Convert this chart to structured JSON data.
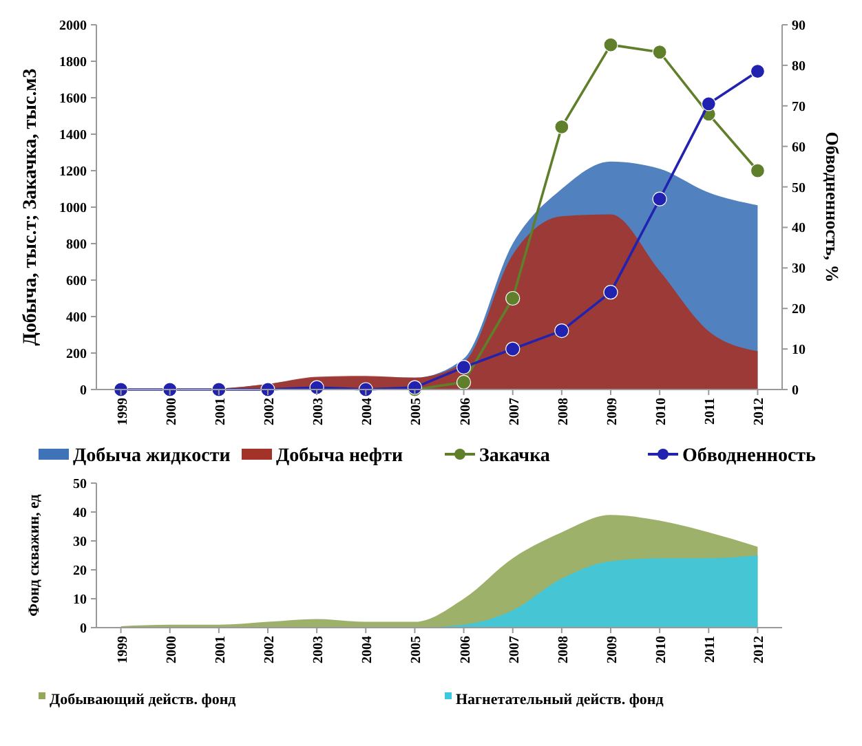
{
  "chart_data": [
    {
      "type": "area",
      "ylabel": "Добыча, тыс.т; Закачка, тыс.м3",
      "y2label": "Обводненность, %",
      "categories": [
        "1999",
        "2000",
        "2001",
        "2002",
        "2003",
        "2004",
        "2005",
        "2006",
        "2007",
        "2008",
        "2009",
        "2010",
        "2011",
        "2012"
      ],
      "ylim": [
        0,
        2000
      ],
      "yticks": [
        0,
        200,
        400,
        600,
        800,
        1000,
        1200,
        1400,
        1600,
        1800,
        2000
      ],
      "y2lim": [
        0,
        90
      ],
      "y2ticks": [
        0,
        10,
        20,
        30,
        40,
        50,
        60,
        70,
        80,
        90
      ],
      "legend": "bottom",
      "grid": false,
      "series": [
        {
          "name": "Добыча жидкости",
          "color": "#3f73b8",
          "values": [
            0,
            0,
            5,
            30,
            65,
            70,
            65,
            170,
            800,
            1100,
            1250,
            1210,
            1080,
            1010
          ]
        },
        {
          "name": "Добыча нефти",
          "color": "#a33228",
          "values": [
            0,
            0,
            5,
            30,
            70,
            75,
            65,
            150,
            740,
            950,
            960,
            650,
            320,
            210
          ]
        },
        {
          "name": "Закачка",
          "type": "line",
          "color": "#5f7f2a",
          "marker": "circle",
          "values": [
            null,
            null,
            null,
            null,
            null,
            null,
            0,
            40,
            500,
            1440,
            1890,
            1850,
            1510,
            1200
          ]
        },
        {
          "name": "Обводненность",
          "type": "line",
          "color": "#2222b0",
          "marker": "circle",
          "axis": "y2",
          "values": [
            0,
            0,
            0,
            0,
            0.5,
            0,
            0.5,
            5.5,
            10,
            14.5,
            24,
            47,
            70.5,
            78.5
          ]
        }
      ]
    },
    {
      "type": "area",
      "ylabel": "Фонд скважин, ед",
      "categories": [
        "1999",
        "2000",
        "2001",
        "2002",
        "2003",
        "2004",
        "2005",
        "2006",
        "2007",
        "2008",
        "2009",
        "2010",
        "2011",
        "2012"
      ],
      "ylim": [
        0,
        50
      ],
      "yticks": [
        0,
        10,
        20,
        30,
        40,
        50
      ],
      "legend": "bottom",
      "grid": false,
      "series": [
        {
          "name": "Добывающий действ. фонд",
          "color": "#94a85a",
          "values": [
            0.5,
            1,
            1,
            2,
            3,
            2,
            2,
            10,
            24,
            33,
            39,
            37,
            33,
            28
          ]
        },
        {
          "name": "Нагнетательный действ. фонд",
          "color": "#3cc8e0",
          "values": [
            0,
            0,
            0,
            0,
            0,
            0,
            0,
            1,
            6,
            17,
            23,
            24,
            24,
            25
          ]
        }
      ]
    }
  ]
}
